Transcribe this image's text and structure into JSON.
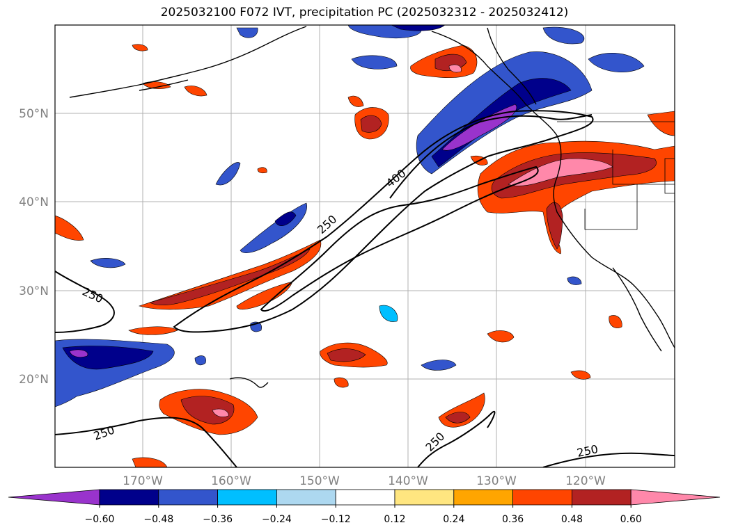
{
  "title": "2025032100 F072 IVT, precipitation PC (2025032312 - 2025032412)",
  "map": {
    "lat_labels": [
      "50°N",
      "40°N",
      "30°N",
      "20°N"
    ],
    "lon_labels": [
      "170°W",
      "160°W",
      "150°W",
      "140°W",
      "130°W",
      "120°W"
    ],
    "contour_labels": [
      "400",
      "250",
      "250",
      "250",
      "250",
      "250"
    ],
    "contour_line_color": "#000000",
    "coastline_color": "#000000",
    "gridline_color": "#b0b0b0"
  },
  "colorbar": {
    "ticks": [
      "−0.60",
      "−0.48",
      "−0.36",
      "−0.24",
      "−0.12",
      "0.12",
      "0.24",
      "0.36",
      "0.48",
      "0.60"
    ],
    "colors": [
      "#9933cc",
      "#00008b",
      "#3355cc",
      "#00bfff",
      "#add8f0",
      "#ffffff",
      "#ffe680",
      "#ffa500",
      "#ff4500",
      "#b22222",
      "#ff88aa"
    ]
  }
}
